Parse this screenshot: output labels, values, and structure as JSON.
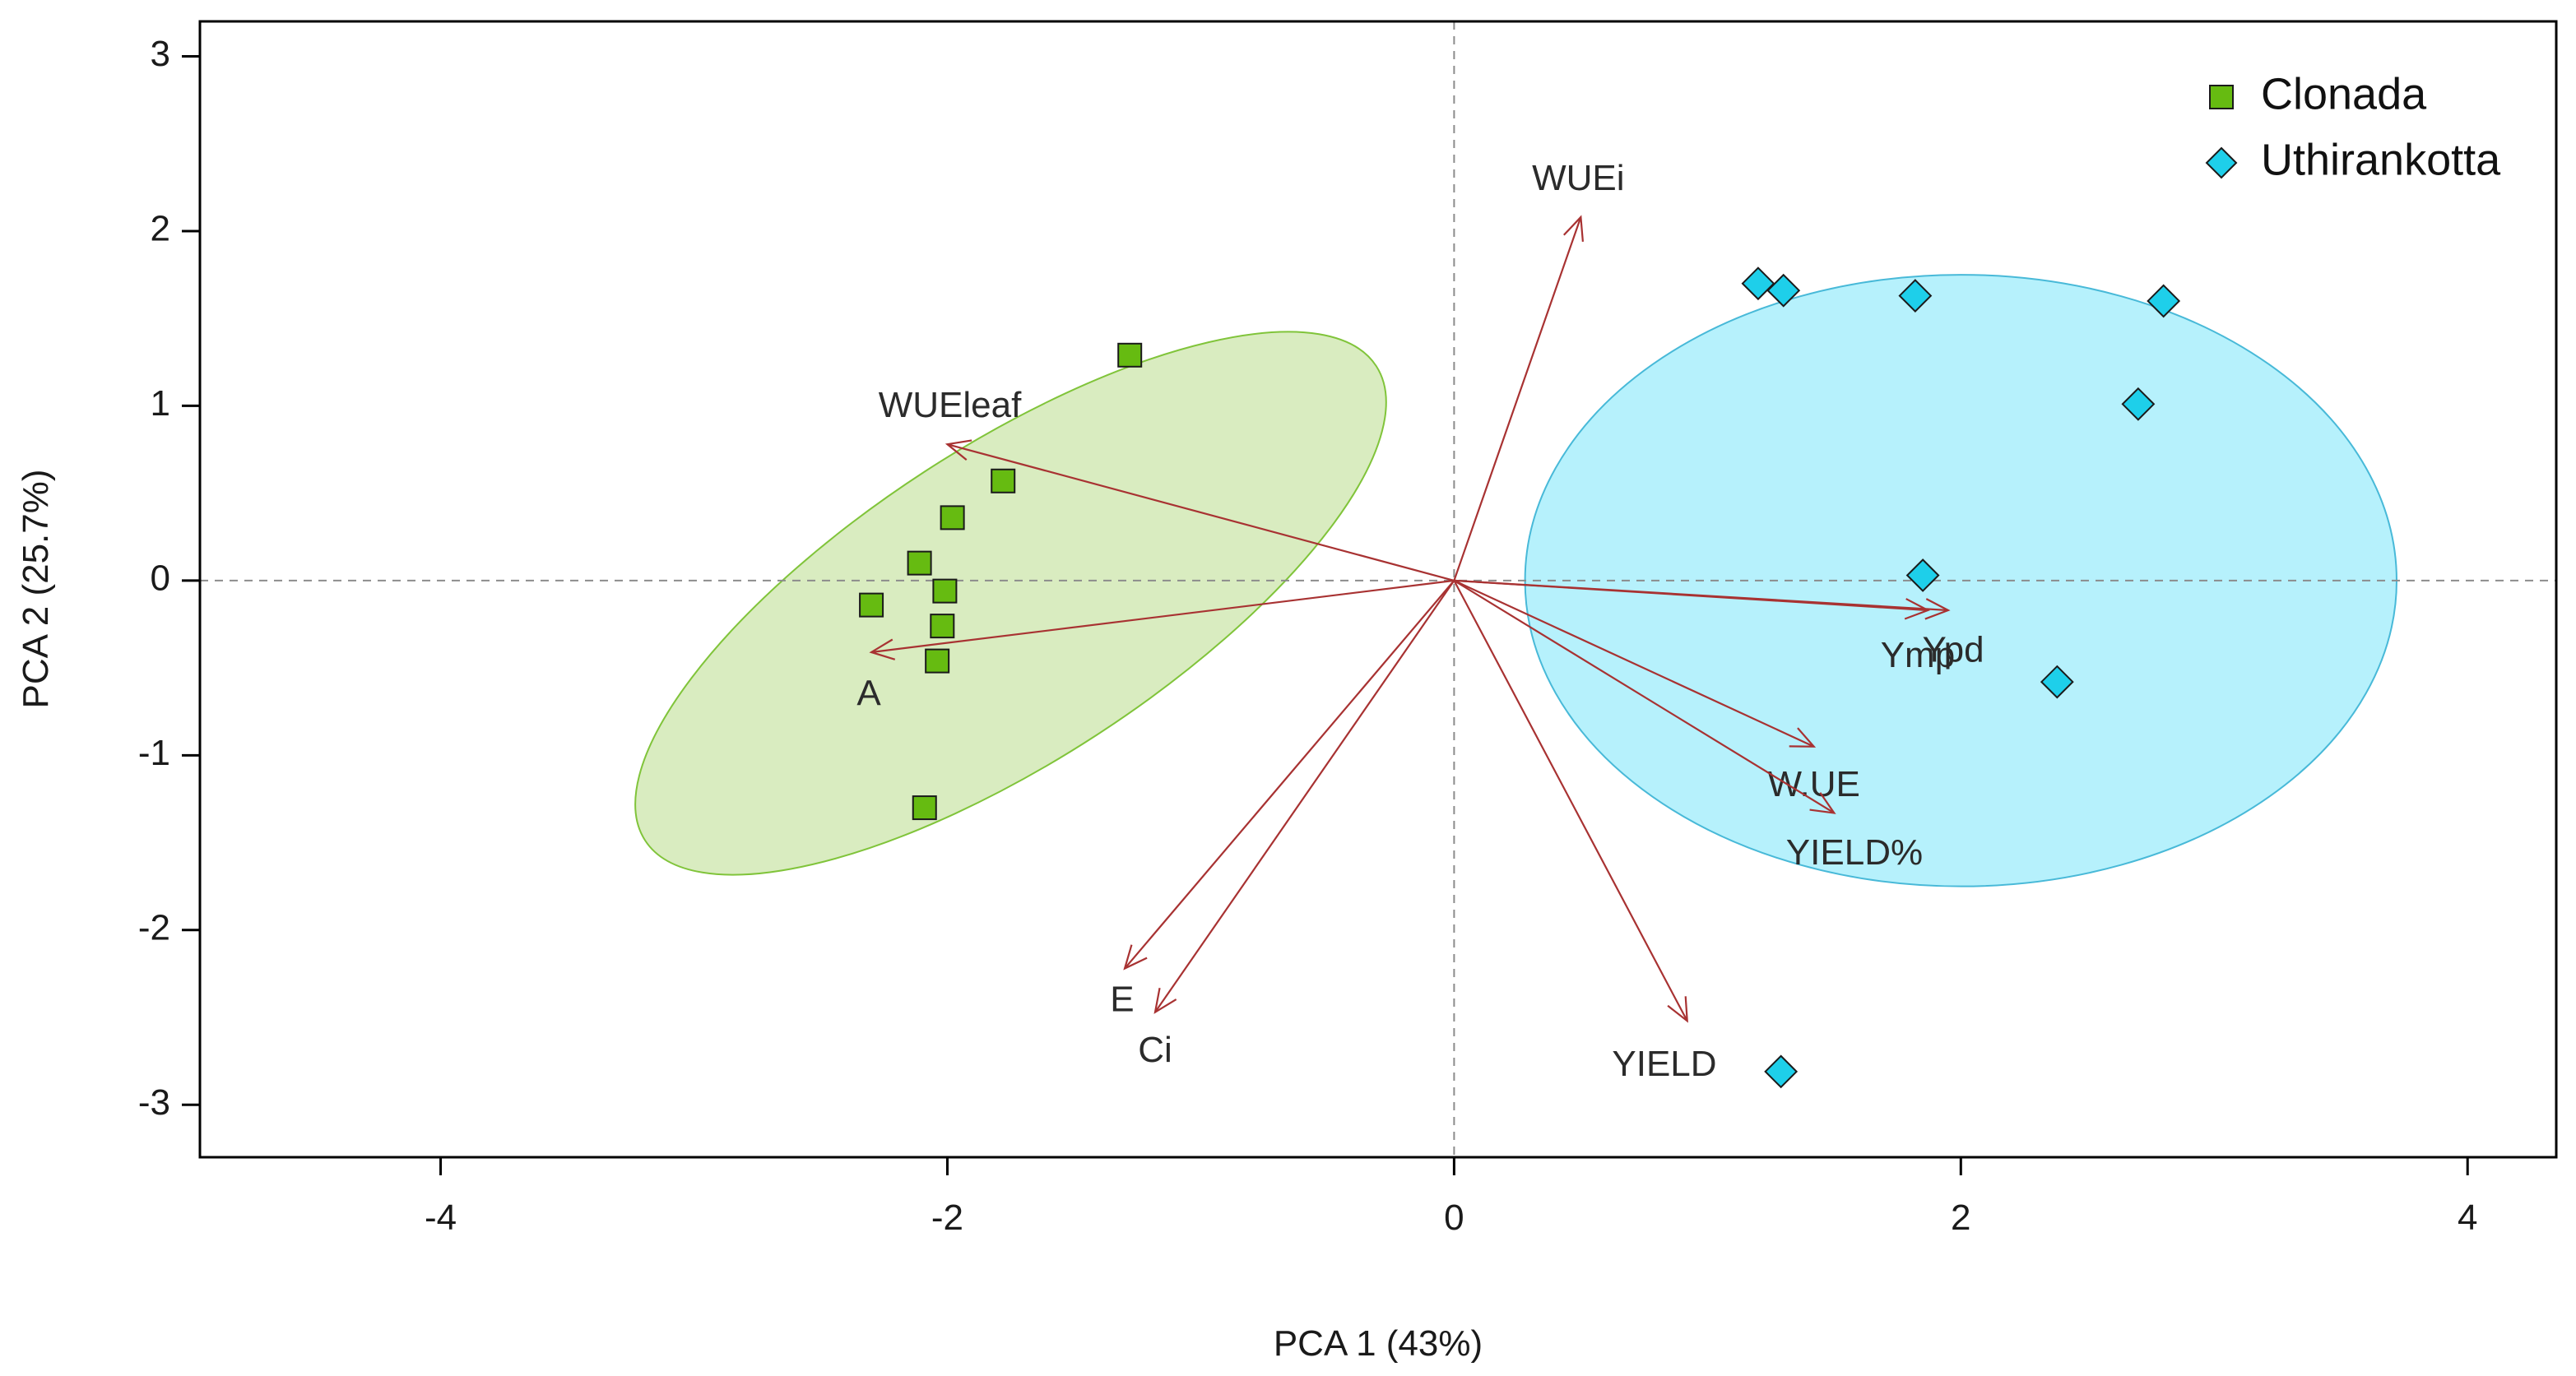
{
  "chart_data": {
    "type": "scatter",
    "title": "",
    "xlabel": "PCA 1 (43%)",
    "ylabel": "PCA 2 (25.7%)",
    "xlim": [
      -4.95,
      4.35
    ],
    "ylim": [
      -3.3,
      3.2
    ],
    "xticks": [
      -4,
      -2,
      0,
      2,
      4
    ],
    "yticks": [
      -3,
      -2,
      -1,
      0,
      1,
      2,
      3
    ],
    "reference_lines": {
      "x": 0,
      "y": 0,
      "style": "dashed"
    },
    "legend_position": "top-right",
    "series": [
      {
        "name": "Clonada",
        "marker": "square",
        "color": "#66bb11",
        "ellipse_fill": "#d9ecc0",
        "ellipse_stroke": "#80c43a",
        "points": [
          {
            "x": -1.28,
            "y": 1.29
          },
          {
            "x": -1.78,
            "y": 0.57
          },
          {
            "x": -1.98,
            "y": 0.36
          },
          {
            "x": -2.11,
            "y": 0.1
          },
          {
            "x": -2.01,
            "y": -0.06
          },
          {
            "x": -2.3,
            "y": -0.14
          },
          {
            "x": -2.02,
            "y": -0.26
          },
          {
            "x": -2.04,
            "y": -0.46
          },
          {
            "x": -2.09,
            "y": -1.3
          }
        ],
        "ellipse": {
          "cx": -1.75,
          "cy": -0.13,
          "rx": 1.72,
          "ry": 0.9,
          "angle_deg": 33
        }
      },
      {
        "name": "Uthirankotta",
        "marker": "diamond",
        "color": "#1ecfea",
        "ellipse_fill": "#b6f1fc",
        "ellipse_stroke": "#48b9d8",
        "points": [
          {
            "x": 1.2,
            "y": 1.7
          },
          {
            "x": 1.3,
            "y": 1.66
          },
          {
            "x": 1.82,
            "y": 1.63
          },
          {
            "x": 2.8,
            "y": 1.6
          },
          {
            "x": 2.7,
            "y": 1.01
          },
          {
            "x": 1.85,
            "y": 0.03
          },
          {
            "x": 2.38,
            "y": -0.58
          },
          {
            "x": 1.29,
            "y": -2.81
          }
        ],
        "ellipse": {
          "cx": 2.0,
          "cy": 0.0,
          "rx": 1.72,
          "ry": 1.75,
          "angle_deg": 0
        }
      }
    ],
    "loadings": {
      "color": "#a83232",
      "vectors": [
        {
          "label": "WUEi",
          "x": 0.5,
          "y": 2.08,
          "lx": 0.49,
          "ly": 2.29
        },
        {
          "label": "WUEleaf",
          "x": -2.0,
          "y": 0.78,
          "lx": -1.99,
          "ly": 0.99
        },
        {
          "label": "A",
          "x": -2.3,
          "y": -0.41,
          "lx": -2.31,
          "ly": -0.66
        },
        {
          "label": "Ypd",
          "x": 1.95,
          "y": -0.17,
          "lx": 1.97,
          "ly": -0.41
        },
        {
          "label": "Ymp",
          "x": 1.87,
          "y": -0.17,
          "lx": 1.83,
          "ly": -0.44
        },
        {
          "label": "W.UE",
          "x": 1.42,
          "y": -0.95,
          "lx": 1.42,
          "ly": -1.18
        },
        {
          "label": "YIELD%",
          "x": 1.5,
          "y": -1.33,
          "lx": 1.58,
          "ly": -1.57
        },
        {
          "label": "YIELD",
          "x": 0.92,
          "y": -2.52,
          "lx": 0.83,
          "ly": -2.78
        },
        {
          "label": "E",
          "x": -1.3,
          "y": -2.22,
          "lx": -1.31,
          "ly": -2.41
        },
        {
          "label": "Ci",
          "x": -1.18,
          "y": -2.47,
          "lx": -1.18,
          "ly": -2.7
        }
      ]
    }
  }
}
